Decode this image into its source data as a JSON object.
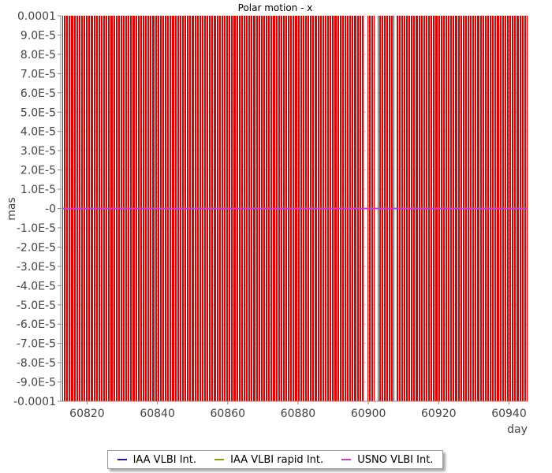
{
  "chart_data": {
    "type": "line",
    "title": "Polar motion - x",
    "xlabel": "day",
    "ylabel": "mas",
    "xlim": [
      60812.5,
      60945.5
    ],
    "ylim": [
      -0.0001,
      0.0001
    ],
    "grid": true,
    "legend_position": "bottom",
    "x_ticks": [
      60820,
      60840,
      60860,
      60880,
      60900,
      60920,
      60940
    ],
    "x_tick_labels": [
      "60820",
      "60840",
      "60860",
      "60880",
      "60900",
      "60920",
      "60940"
    ],
    "y_ticks": [
      0.0001,
      9e-05,
      8e-05,
      7e-05,
      6e-05,
      5e-05,
      4e-05,
      3e-05,
      2e-05,
      1e-05,
      0,
      -1e-05,
      -2e-05,
      -3e-05,
      -4e-05,
      -5e-05,
      -6e-05,
      -7e-05,
      -8e-05,
      -9e-05,
      -0.0001
    ],
    "y_tick_labels": [
      "0.0001",
      "9.0E-5",
      "8.0E-5",
      "7.0E-5",
      "6.0E-5",
      "5.0E-5",
      "4.0E-5",
      "3.0E-5",
      "2.0E-5",
      "1.0E-5",
      "-0",
      "-1.0E-5",
      "-2.0E-5",
      "-3.0E-5",
      "-4.0E-5",
      "-5.0E-5",
      "-6.0E-5",
      "-7.0E-5",
      "-8.0E-5",
      "-9.0E-5",
      "-0.0001"
    ],
    "series": [
      {
        "name": "IAA VLBI Int.",
        "color": "#1a1aa6",
        "values": [
          [
            60813,
            0
          ],
          [
            60945,
            0
          ]
        ]
      },
      {
        "name": "IAA VLBI rapid Int.",
        "color": "#8c9a1a",
        "values": [
          [
            60813,
            0
          ],
          [
            60945,
            0
          ]
        ]
      },
      {
        "name": "USNO VLBI Int.",
        "color": "#c040c8",
        "values": [
          [
            60813,
            0
          ],
          [
            60945,
            0
          ]
        ]
      }
    ],
    "error_bars": {
      "color": "#dd0000",
      "low": -0.0001,
      "high": 0.0001,
      "x_start": 60813.0,
      "x_end": 60945.0,
      "x_step": 0.33,
      "gaps": [
        [
          60898.5,
          60899.5
        ],
        [
          60901.5,
          60902.5
        ],
        [
          60907.2,
          60907.9
        ]
      ]
    }
  },
  "legend": {
    "items": [
      {
        "label": "IAA VLBI Int.",
        "color": "#1a1aa6"
      },
      {
        "label": "IAA VLBI rapid Int.",
        "color": "#8c9a1a"
      },
      {
        "label": "USNO VLBI Int.",
        "color": "#c040c8"
      }
    ]
  }
}
